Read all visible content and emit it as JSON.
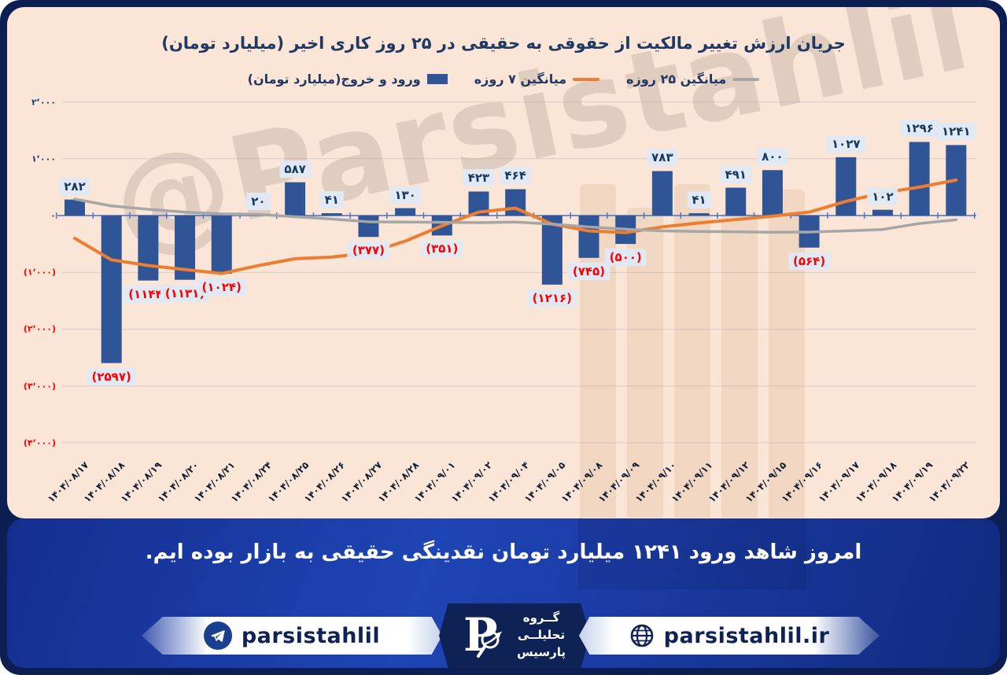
{
  "title": "جریان ارزش تغییر مالکیت از حقوقی به حقیقی در ۲۵ روز کاری اخیر (میلیارد تومان)",
  "watermark": "@Parsistahlil",
  "colors": {
    "bar": "#2F5597",
    "ma7": "#ED7D31",
    "ma25": "#A6A6A6",
    "axis": "#4472C4",
    "grid": "rgba(130,140,170,0.28)",
    "chip_bg": "#DEE9F6",
    "pos_text": "#17375E",
    "neg_text": "#FF0000",
    "card_bg": "#FBE5D6",
    "frame": "#0C1E52",
    "band": "#1B3AA0"
  },
  "legend": {
    "items": [
      {
        "label": "ورود و خروج(میلیارد تومان)",
        "marker": "square",
        "color": "#2F5597"
      },
      {
        "label": "میانگین ۷ روزه",
        "marker": "dash",
        "color": "#ED7D31"
      },
      {
        "label": "میانگین ۲۵ روزه",
        "marker": "dash",
        "color": "#A6A6A6"
      }
    ]
  },
  "chart_data": {
    "type": "bar",
    "title": "جریان ارزش تغییر مالکیت از حقوقی به حقیقی در ۲۵ روز کاری اخیر (میلیارد تومان)",
    "xlabel": "",
    "ylabel": "",
    "ylim": [
      -4000,
      2000
    ],
    "grid": true,
    "legend_position": "top",
    "categories": [
      "۱۴۰۴/۰۸/۱۷",
      "۱۴۰۴/۰۸/۱۸",
      "۱۴۰۴/۰۸/۱۹",
      "۱۴۰۴/۰۸/۲۰",
      "۱۴۰۴/۰۸/۲۱",
      "۱۴۰۴/۰۸/۲۴",
      "۱۴۰۴/۰۸/۲۵",
      "۱۴۰۴/۰۸/۲۶",
      "۱۴۰۴/۰۸/۲۷",
      "۱۴۰۴/۰۸/۲۸",
      "۱۴۰۴/۰۹/۰۱",
      "۱۴۰۴/۰۹/۰۲",
      "۱۴۰۴/۰۹/۰۴",
      "۱۴۰۴/۰۹/۰۵",
      "۱۴۰۴/۰۹/۰۸",
      "۱۴۰۴/۰۹/۰۹",
      "۱۴۰۴/۰۹/۱۰",
      "۱۴۰۴/۰۹/۱۱",
      "۱۴۰۴/۰۹/۱۲",
      "۱۴۰۴/۰۹/۱۵",
      "۱۴۰۴/۰۹/۱۶",
      "۱۴۰۴/۰۹/۱۷",
      "۱۴۰۴/۰۹/۱۸",
      "۱۴۰۴/۰۹/۱۹",
      "۱۴۰۴/۰۹/۲۲"
    ],
    "series": [
      {
        "name": "ورود و خروج(میلیارد تومان)",
        "type": "bar",
        "color": "#2F5597",
        "values": [
          282,
          -2597,
          -1144,
          -1131,
          -1024,
          20,
          587,
          41,
          -377,
          130,
          -351,
          423,
          464,
          -1216,
          -745,
          -500,
          783,
          41,
          491,
          800,
          -564,
          1027,
          102,
          1296,
          1241
        ],
        "labels": [
          "۲۸۲",
          "(۲۵۹۷)",
          "(۱۱۴۴)",
          "(۱۱۳۱)",
          "(۱۰۲۴)",
          "۲۰",
          "۵۸۷",
          "۴۱",
          "(۳۷۷)",
          "۱۳۰",
          "(۳۵۱)",
          "۴۲۳",
          "۴۶۴",
          "(۱۲۱۶)",
          "(۷۴۵)",
          "(۵۰۰)",
          "۷۸۳",
          "۴۱",
          "۴۹۱",
          "۸۰۰",
          "(۵۶۴)",
          "۱۰۲۷",
          "۱۰۲",
          "۱۲۹۶",
          "۱۲۴۱"
        ]
      },
      {
        "name": "میانگین ۷ روزه",
        "type": "line",
        "color": "#ED7D31",
        "values": [
          -400,
          -780,
          -880,
          -950,
          -1020,
          -880,
          -760,
          -730,
          -660,
          -450,
          -180,
          60,
          130,
          -150,
          -270,
          -300,
          -200,
          -130,
          -70,
          -10,
          60,
          250,
          400,
          500,
          625
        ]
      },
      {
        "name": "میانگین ۲۵ روزه",
        "type": "line",
        "color": "#A6A6A6",
        "values": [
          290,
          170,
          110,
          60,
          30,
          20,
          -20,
          -60,
          -110,
          -115,
          -120,
          -125,
          -115,
          -150,
          -200,
          -240,
          -270,
          -280,
          -285,
          -295,
          -290,
          -270,
          -245,
          -140,
          -75
        ]
      }
    ],
    "yticks": [
      {
        "value": 2000,
        "label": "۲٬۰۰۰",
        "negative": false
      },
      {
        "value": 1000,
        "label": "۱٬۰۰۰",
        "negative": false
      },
      {
        "value": 0,
        "label": "۰",
        "negative": false
      },
      {
        "value": -1000,
        "label": "(۱٬۰۰۰)",
        "negative": true
      },
      {
        "value": -2000,
        "label": "(۲٬۰۰۰)",
        "negative": true
      },
      {
        "value": -3000,
        "label": "(۳٬۰۰۰)",
        "negative": true
      },
      {
        "value": -4000,
        "label": "(۴٬۰۰۰)",
        "negative": true
      }
    ]
  },
  "message": "امروز شاهد ورود ۱۲۴۱ میلیارد تومان نقدینگی حقیقی به بازار بوده ایم.",
  "footer": {
    "telegram_handle": "parsistahlil",
    "website": "parsistahlil.ir",
    "logo_letter": "P",
    "brand_lines": [
      "گــروه",
      "تحلیلــی",
      "پارسیس"
    ]
  }
}
